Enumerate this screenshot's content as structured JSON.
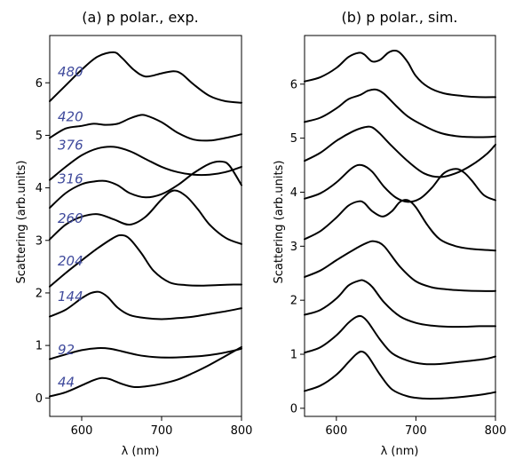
{
  "chart_data": [
    {
      "type": "line",
      "title": "(a) p polar., exp.",
      "xlabel": "λ (nm)",
      "ylabel": "Scattering (arb.units)",
      "xlim": [
        560,
        800
      ],
      "ylim": [
        -0.35,
        6.9
      ],
      "xticks": [
        600,
        700,
        800
      ],
      "yticks": [
        0,
        1,
        2,
        3,
        4,
        5,
        6
      ],
      "grid": false,
      "legend": "none",
      "line_color": "#000000",
      "label_color": "#3f4a9c",
      "series": [
        {
          "name": "44",
          "label_x": 570,
          "label_y": 0.22,
          "x": [
            560,
            580,
            600,
            615,
            625,
            635,
            650,
            665,
            680,
            700,
            720,
            740,
            760,
            780,
            800
          ],
          "y": [
            0.03,
            0.11,
            0.24,
            0.34,
            0.38,
            0.36,
            0.27,
            0.21,
            0.22,
            0.27,
            0.35,
            0.48,
            0.63,
            0.8,
            0.97
          ]
        },
        {
          "name": "92",
          "label_x": 570,
          "label_y": 0.83,
          "x": [
            560,
            580,
            600,
            620,
            635,
            650,
            670,
            690,
            710,
            730,
            750,
            770,
            790,
            800
          ],
          "y": [
            0.74,
            0.83,
            0.91,
            0.95,
            0.94,
            0.89,
            0.82,
            0.78,
            0.77,
            0.78,
            0.8,
            0.84,
            0.9,
            0.94
          ]
        },
        {
          "name": "144",
          "label_x": 570,
          "label_y": 1.85,
          "x": [
            560,
            580,
            600,
            612,
            622,
            632,
            645,
            660,
            680,
            700,
            720,
            740,
            760,
            780,
            800
          ],
          "y": [
            1.55,
            1.68,
            1.9,
            2.0,
            2.02,
            1.93,
            1.72,
            1.58,
            1.52,
            1.5,
            1.52,
            1.55,
            1.6,
            1.65,
            1.71
          ]
        },
        {
          "name": "204",
          "label_x": 570,
          "label_y": 2.52,
          "x": [
            560,
            580,
            600,
            620,
            640,
            650,
            660,
            675,
            690,
            710,
            730,
            750,
            770,
            790,
            800
          ],
          "y": [
            2.12,
            2.38,
            2.62,
            2.85,
            3.05,
            3.1,
            3.03,
            2.75,
            2.42,
            2.2,
            2.15,
            2.14,
            2.15,
            2.16,
            2.16
          ]
        },
        {
          "name": "260",
          "label_x": 570,
          "label_y": 3.33,
          "x": [
            560,
            580,
            600,
            620,
            640,
            660,
            680,
            700,
            715,
            730,
            745,
            760,
            780,
            800
          ],
          "y": [
            3.02,
            3.3,
            3.45,
            3.5,
            3.4,
            3.3,
            3.45,
            3.78,
            3.95,
            3.85,
            3.6,
            3.3,
            3.05,
            2.93
          ]
        },
        {
          "name": "316",
          "label_x": 570,
          "label_y": 4.09,
          "x": [
            560,
            580,
            600,
            615,
            630,
            645,
            660,
            680,
            700,
            720,
            740,
            760,
            775,
            785,
            800
          ],
          "y": [
            3.62,
            3.9,
            4.07,
            4.12,
            4.13,
            4.05,
            3.9,
            3.82,
            3.88,
            4.05,
            4.28,
            4.46,
            4.5,
            4.42,
            4.05
          ]
        },
        {
          "name": "376",
          "label_x": 570,
          "label_y": 4.73,
          "x": [
            560,
            580,
            600,
            620,
            640,
            660,
            680,
            700,
            720,
            740,
            760,
            780,
            800
          ],
          "y": [
            4.15,
            4.4,
            4.62,
            4.75,
            4.78,
            4.7,
            4.55,
            4.4,
            4.3,
            4.25,
            4.25,
            4.3,
            4.4
          ]
        },
        {
          "name": "420",
          "label_x": 570,
          "label_y": 5.27,
          "x": [
            560,
            580,
            600,
            615,
            630,
            645,
            660,
            672,
            680,
            700,
            720,
            740,
            760,
            780,
            800
          ],
          "y": [
            4.95,
            5.13,
            5.18,
            5.22,
            5.2,
            5.22,
            5.32,
            5.38,
            5.38,
            5.25,
            5.05,
            4.92,
            4.9,
            4.95,
            5.02
          ]
        },
        {
          "name": "480",
          "label_x": 570,
          "label_y": 6.12,
          "x": [
            560,
            580,
            600,
            620,
            640,
            650,
            665,
            680,
            700,
            715,
            725,
            740,
            760,
            780,
            800
          ],
          "y": [
            5.65,
            5.95,
            6.25,
            6.5,
            6.58,
            6.48,
            6.25,
            6.12,
            6.18,
            6.22,
            6.17,
            5.97,
            5.75,
            5.65,
            5.62
          ]
        }
      ]
    },
    {
      "type": "line",
      "title": "(b) p polar., sim.",
      "xlabel": "λ (nm)",
      "ylabel": "Scattering (arb.units)",
      "xlim": [
        560,
        800
      ],
      "ylim": [
        -0.15,
        6.9
      ],
      "xticks": [
        600,
        700,
        800
      ],
      "yticks": [
        0,
        1,
        2,
        3,
        4,
        5,
        6
      ],
      "grid": false,
      "legend": "none",
      "line_color": "#000000",
      "series": [
        {
          "x": [
            560,
            580,
            600,
            615,
            625,
            632,
            640,
            655,
            670,
            690,
            710,
            730,
            750,
            770,
            790,
            800
          ],
          "y": [
            0.32,
            0.42,
            0.62,
            0.85,
            1.0,
            1.05,
            0.96,
            0.62,
            0.35,
            0.22,
            0.18,
            0.18,
            0.2,
            0.23,
            0.27,
            0.3
          ]
        },
        {
          "x": [
            560,
            580,
            600,
            615,
            625,
            632,
            640,
            655,
            670,
            690,
            710,
            730,
            750,
            770,
            790,
            800
          ],
          "y": [
            1.03,
            1.13,
            1.35,
            1.58,
            1.69,
            1.7,
            1.59,
            1.27,
            1.02,
            0.88,
            0.82,
            0.82,
            0.85,
            0.88,
            0.92,
            0.96
          ]
        },
        {
          "x": [
            560,
            580,
            600,
            615,
            628,
            635,
            645,
            660,
            680,
            700,
            720,
            740,
            760,
            780,
            800
          ],
          "y": [
            1.73,
            1.82,
            2.03,
            2.27,
            2.36,
            2.36,
            2.25,
            1.96,
            1.7,
            1.58,
            1.53,
            1.51,
            1.51,
            1.52,
            1.52
          ]
        },
        {
          "x": [
            560,
            580,
            600,
            620,
            638,
            648,
            660,
            680,
            700,
            720,
            740,
            760,
            780,
            800
          ],
          "y": [
            2.43,
            2.55,
            2.74,
            2.92,
            3.06,
            3.09,
            3.0,
            2.62,
            2.35,
            2.24,
            2.2,
            2.18,
            2.17,
            2.17
          ]
        },
        {
          "x": [
            560,
            580,
            600,
            615,
            628,
            635,
            645,
            658,
            670,
            680,
            690,
            700,
            715,
            730,
            750,
            770,
            790,
            800
          ],
          "y": [
            3.13,
            3.28,
            3.53,
            3.75,
            3.83,
            3.8,
            3.65,
            3.55,
            3.65,
            3.82,
            3.85,
            3.72,
            3.38,
            3.13,
            3.0,
            2.95,
            2.93,
            2.92
          ]
        },
        {
          "x": [
            560,
            580,
            600,
            620,
            632,
            645,
            660,
            675,
            690,
            705,
            720,
            735,
            750,
            760,
            770,
            785,
            800
          ],
          "y": [
            3.88,
            3.98,
            4.18,
            4.45,
            4.5,
            4.38,
            4.1,
            3.9,
            3.82,
            3.88,
            4.08,
            4.35,
            4.43,
            4.37,
            4.22,
            3.95,
            3.85
          ]
        },
        {
          "x": [
            560,
            580,
            600,
            620,
            635,
            645,
            655,
            670,
            690,
            710,
            730,
            750,
            770,
            790,
            800
          ],
          "y": [
            4.58,
            4.73,
            4.95,
            5.12,
            5.2,
            5.2,
            5.08,
            4.85,
            4.57,
            4.35,
            4.28,
            4.35,
            4.5,
            4.72,
            4.88
          ]
        },
        {
          "x": [
            560,
            580,
            600,
            615,
            630,
            640,
            650,
            660,
            675,
            690,
            710,
            730,
            750,
            770,
            790,
            800
          ],
          "y": [
            5.3,
            5.38,
            5.55,
            5.72,
            5.8,
            5.88,
            5.9,
            5.82,
            5.6,
            5.4,
            5.23,
            5.1,
            5.04,
            5.02,
            5.02,
            5.03
          ]
        },
        {
          "x": [
            560,
            580,
            600,
            615,
            628,
            635,
            645,
            655,
            665,
            673,
            680,
            690,
            700,
            715,
            735,
            760,
            780,
            800
          ],
          "y": [
            6.05,
            6.13,
            6.3,
            6.5,
            6.58,
            6.55,
            6.42,
            6.45,
            6.58,
            6.62,
            6.58,
            6.4,
            6.15,
            5.95,
            5.83,
            5.78,
            5.76,
            5.76
          ]
        }
      ]
    }
  ]
}
